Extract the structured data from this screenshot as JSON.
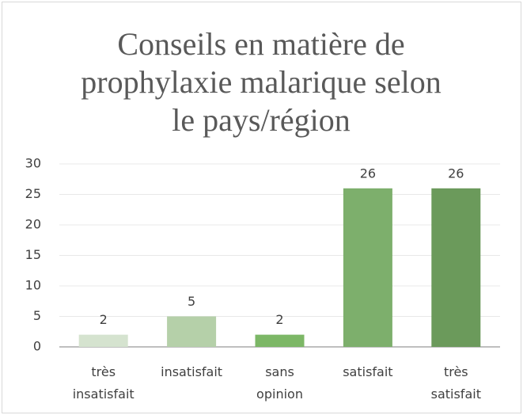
{
  "chart_data": {
    "type": "bar",
    "title": "Conseils en matière de prophylaxie malarique selon le pays/région",
    "categories": [
      "très insatisfait",
      "insatisfait",
      "sans opinion",
      "satisfait",
      "très satisfait"
    ],
    "values": [
      2,
      5,
      2,
      26,
      26
    ],
    "colors": [
      "#d5e3cf",
      "#b5d0a9",
      "#7cb766",
      "#7daf6c",
      "#6b9a5b"
    ],
    "ylim": [
      0,
      30
    ],
    "yticks": [
      0,
      5,
      10,
      15,
      20,
      25,
      30
    ],
    "grid": true
  }
}
